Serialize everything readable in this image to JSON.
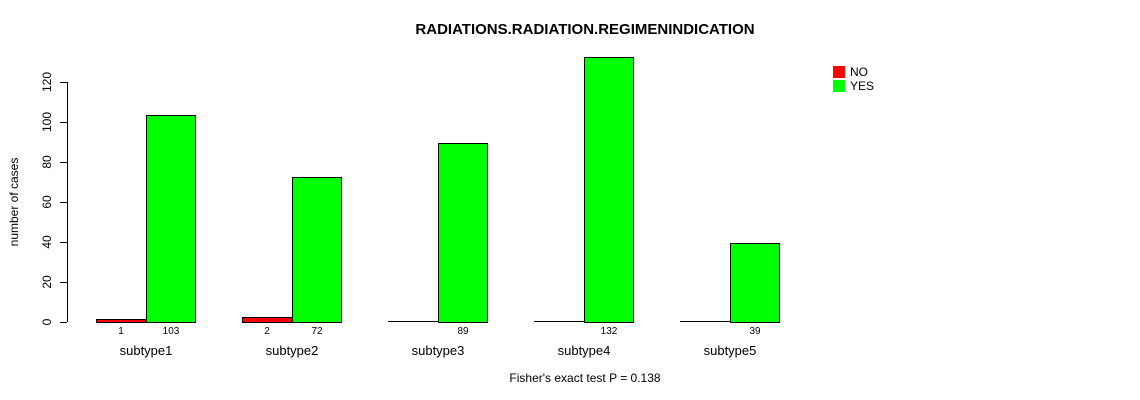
{
  "chart_data": {
    "type": "bar",
    "title": "RADIATIONS.RADIATION.REGIMENINDICATION",
    "ylabel": "number of cases",
    "xlabel": "",
    "footnote": "Fisher's exact test P = 0.138",
    "categories": [
      "subtype1",
      "subtype2",
      "subtype3",
      "subtype4",
      "subtype5"
    ],
    "series": [
      {
        "name": "NO",
        "color": "#FF0000",
        "values": [
          1,
          2,
          0,
          0,
          0
        ],
        "bar_labels": [
          "1",
          "2",
          "",
          "",
          ""
        ]
      },
      {
        "name": "YES",
        "color": "#00FF00",
        "values": [
          103,
          72,
          89,
          132,
          39
        ],
        "bar_labels": [
          "103",
          "72",
          "89",
          "132",
          "39"
        ]
      }
    ],
    "yticks": [
      0,
      20,
      40,
      60,
      80,
      100,
      120
    ],
    "ylim": [
      0,
      132
    ],
    "grid": false,
    "legend": {
      "position": "topright",
      "entries": [
        {
          "label": "NO",
          "color": "#FF0000"
        },
        {
          "label": "YES",
          "color": "#00FF00"
        }
      ]
    }
  }
}
